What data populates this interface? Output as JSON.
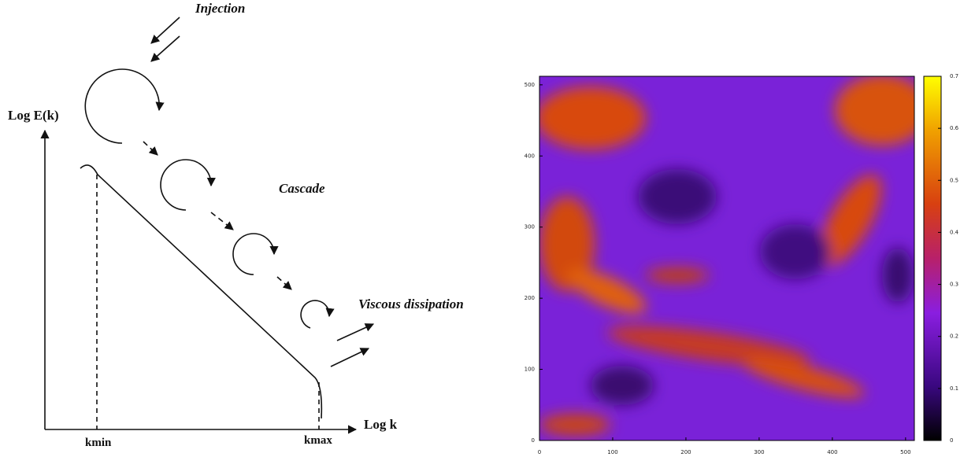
{
  "diagram": {
    "injection": "Injection",
    "y_axis": "Log E(k)",
    "cascade": "Cascade",
    "dissipation": "Viscous dissipation",
    "x_axis": "Log k",
    "kmin": "kmin",
    "kmax": "kmax"
  },
  "heatmap": {
    "xlim": [
      0,
      512
    ],
    "ylim": [
      0,
      512
    ],
    "xticks": [
      0,
      100,
      200,
      300,
      400,
      500
    ],
    "yticks": [
      0,
      100,
      200,
      300,
      400,
      500
    ],
    "colorbar": {
      "lim": [
        0,
        0.7
      ],
      "ticks": [
        0,
        0.1,
        0.2,
        0.3,
        0.4,
        0.5,
        0.6,
        0.7
      ]
    }
  }
}
